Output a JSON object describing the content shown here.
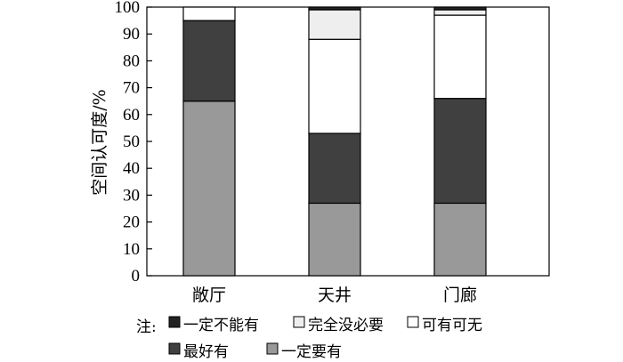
{
  "chart_data": {
    "type": "bar",
    "stacked": true,
    "ylabel": "空间认可度/%",
    "ylim": [
      0,
      100
    ],
    "yticks": [
      0,
      10,
      20,
      30,
      40,
      50,
      60,
      70,
      80,
      90,
      100
    ],
    "categories": [
      "敞厅",
      "天井",
      "门廊"
    ],
    "series": [
      {
        "name": "一定要有",
        "color": "#999999",
        "values": [
          65,
          27,
          27
        ]
      },
      {
        "name": "最好有",
        "color": "#404040",
        "values": [
          30,
          26,
          39
        ]
      },
      {
        "name": "可有可无",
        "color": "#ffffff",
        "values": [
          5,
          35,
          31
        ]
      },
      {
        "name": "完全没必要",
        "color": "#eeeeee",
        "values": [
          0,
          11,
          2
        ]
      },
      {
        "name": "一定不能有",
        "color": "#222222",
        "values": [
          0,
          1,
          1
        ]
      }
    ],
    "legend": {
      "prefix": "注:",
      "placement": "bottom",
      "rows": [
        [
          "一定不能有",
          "完全没必要",
          "可有可无"
        ],
        [
          "最好有",
          "一定要有"
        ]
      ]
    },
    "grid": false
  }
}
